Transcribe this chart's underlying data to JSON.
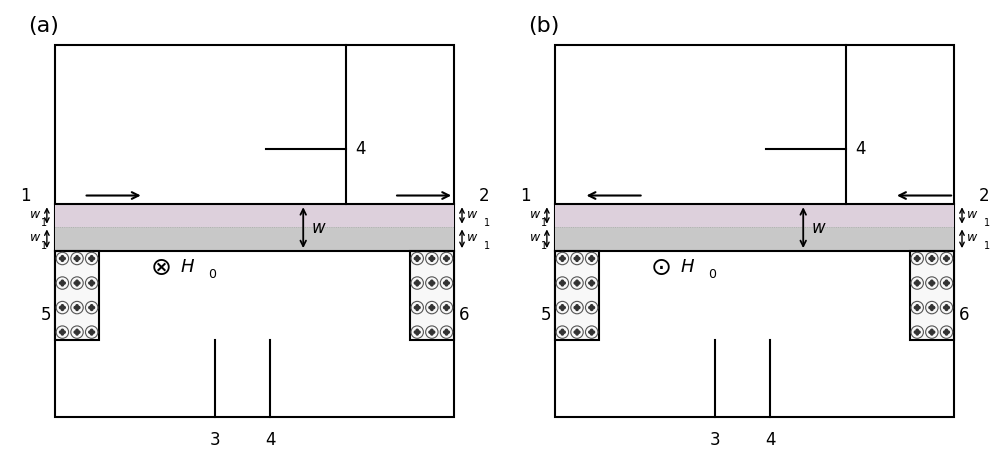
{
  "fig_width": 10.0,
  "fig_height": 4.62,
  "bg_color": "#ffffff",
  "panel_a": {
    "label": "(a)",
    "arrow_direction": "right",
    "H0_symbol": "⊗",
    "H0_label": "H₀"
  },
  "panel_b": {
    "label": "(b)",
    "arrow_direction": "left",
    "H0_symbol": "⊙",
    "H0_label": "H₀"
  },
  "outer_box_color": "#000000",
  "waveguide_gray": "#c8c8c8",
  "waveguide_pink": "#ddd0dc",
  "magnet_fill": "#f8f8f8",
  "line_color": "#000000",
  "text_color": "#000000"
}
